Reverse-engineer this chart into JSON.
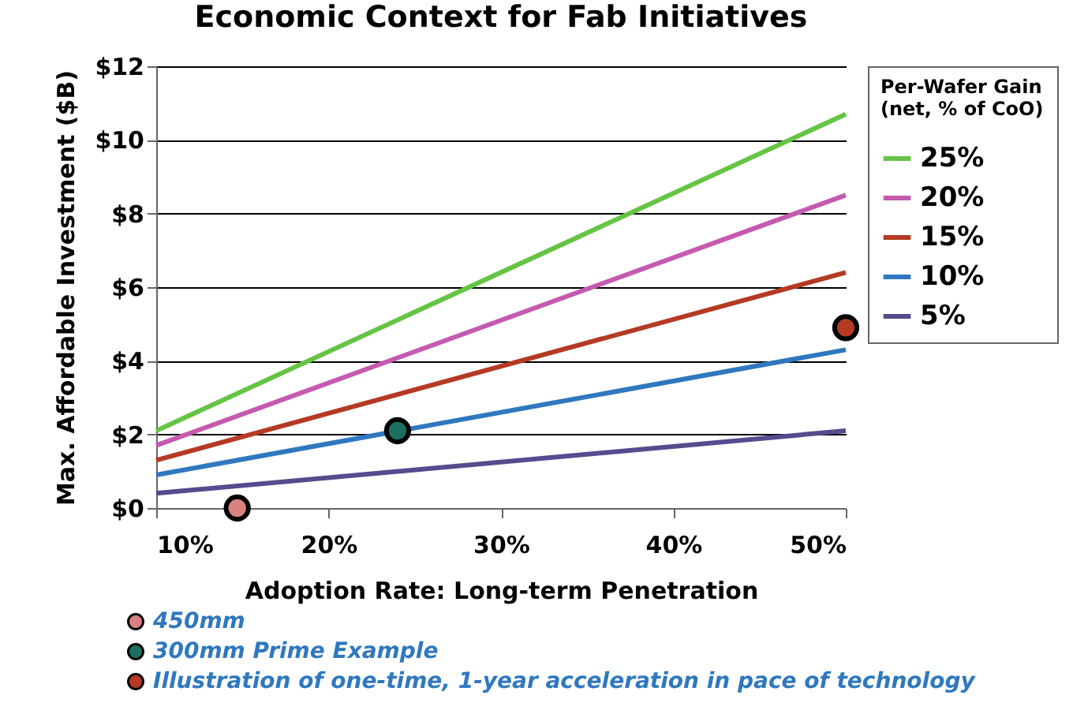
{
  "chart_data": {
    "type": "line",
    "title": "Economic Context for Fab Initiatives",
    "xlabel": "Adoption Rate:  Long-term Penetration",
    "ylabel": "Max. Affordable  Investment  ($B)",
    "legend_title": "Per-Wafer Gain\n(net, % of CoO)",
    "legend": "right",
    "grid": "y",
    "marker": "none",
    "line_style": "solid",
    "xlim": [
      10,
      50
    ],
    "xticks": [
      {
        "value": 10,
        "label": "10%"
      },
      {
        "value": 20,
        "label": "20%"
      },
      {
        "value": 30,
        "label": "30%"
      },
      {
        "value": 40,
        "label": "40%"
      },
      {
        "value": 50,
        "label": "50%"
      }
    ],
    "ylim": [
      0,
      12
    ],
    "yticks": [
      {
        "value": 0,
        "label": "$0"
      },
      {
        "value": 2,
        "label": "$2"
      },
      {
        "value": 4,
        "label": "$4"
      },
      {
        "value": 6,
        "label": "$6"
      },
      {
        "value": 8,
        "label": "$8"
      },
      {
        "value": 10,
        "label": "$10"
      },
      {
        "value": 12,
        "label": "$12"
      }
    ],
    "x": [
      10,
      50
    ],
    "series": [
      {
        "name": "25%",
        "color": "#66c444",
        "values": [
          2.1,
          10.7
        ]
      },
      {
        "name": "20%",
        "color": "#c55ab0",
        "values": [
          1.7,
          8.5
        ]
      },
      {
        "name": "15%",
        "color": "#b53a24",
        "values": [
          1.3,
          6.4
        ]
      },
      {
        "name": "10%",
        "color": "#2f78bf",
        "values": [
          0.9,
          4.3
        ]
      },
      {
        "name": "5%",
        "color": "#574a8e",
        "values": [
          0.4,
          2.1
        ]
      },
      {
        "name": "450mm",
        "type": "scatter",
        "marker": "circle",
        "color": "#d98080",
        "x": [
          14.7
        ],
        "values": [
          0
        ]
      },
      {
        "name": "300mm Prime Example",
        "type": "scatter",
        "marker": "circle",
        "color": "#1d7061",
        "x": [
          24
        ],
        "values": [
          2.1
        ]
      },
      {
        "name": "Illustration of one-time, 1-year acceleration in pace of technology",
        "type": "scatter",
        "marker": "circle",
        "color": "#b53a24",
        "x": [
          50
        ],
        "values": [
          4.9
        ]
      }
    ]
  }
}
